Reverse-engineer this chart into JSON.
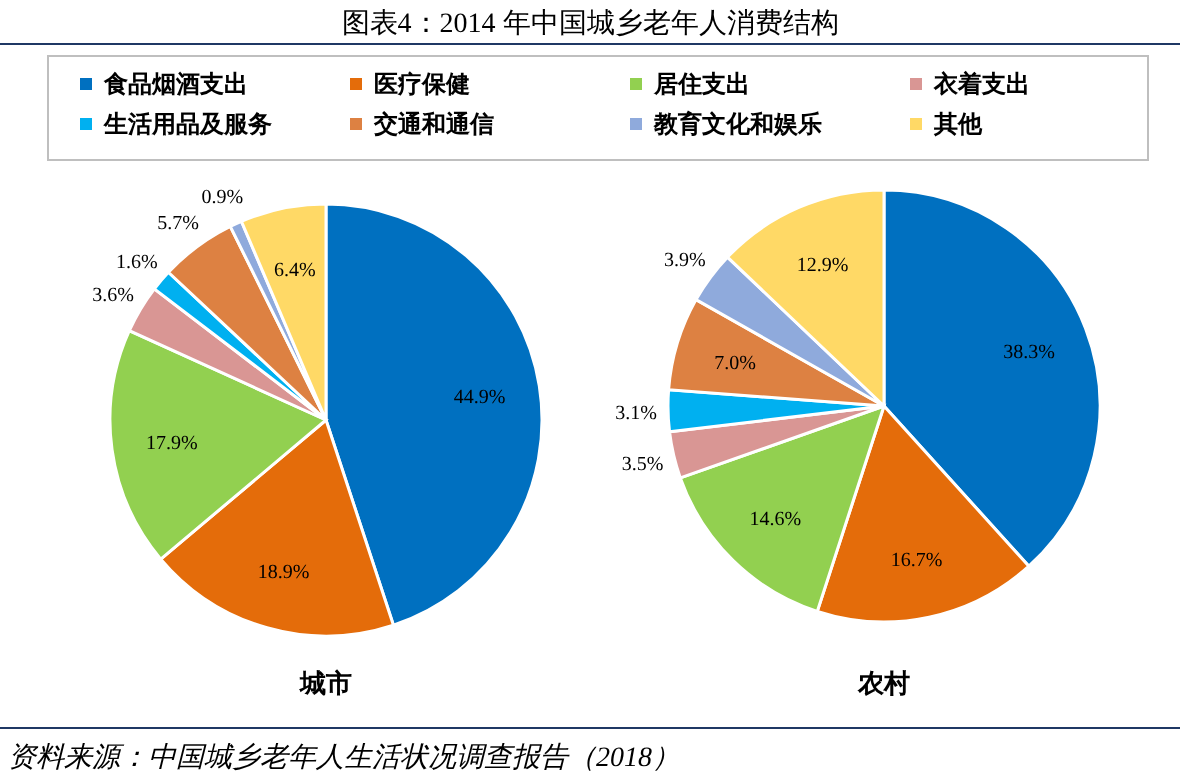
{
  "chart_data": [
    {
      "type": "pie",
      "title": "图表4：2014 年中国城乡老年人消费结构",
      "xlabel": "城市",
      "legend": "top",
      "categories": [
        "食品烟酒支出",
        "医疗保健",
        "居住支出",
        "衣着支出",
        "生活用品及服务",
        "交通和通信",
        "教育文化和娱乐",
        "其他"
      ],
      "values": [
        44.9,
        18.9,
        17.9,
        3.6,
        1.6,
        5.7,
        0.9,
        6.4
      ],
      "value_labels": [
        "44.9%",
        "18.9%",
        "17.9%",
        "3.6%",
        "1.6%",
        "5.7%",
        "0.9%",
        "6.4%"
      ],
      "colors": [
        "#0070c0",
        "#e46c0a",
        "#92d050",
        "#d99694",
        "#00b0f0",
        "#dd8142",
        "#8faadc",
        "#ffd966"
      ]
    },
    {
      "type": "pie",
      "xlabel": "农村",
      "categories": [
        null,
        null,
        null,
        null,
        null,
        null,
        null,
        null
      ],
      "values": [
        38.3,
        16.7,
        14.6,
        3.5,
        3.1,
        7.0,
        3.9,
        12.9
      ],
      "value_labels": [
        "38.3%",
        "16.7%",
        "14.6%",
        "3.5%",
        "3.1%",
        "7.0%",
        "3.9%",
        "12.9%"
      ],
      "colors": [
        "#0070c0",
        "#e46c0a",
        "#92d050",
        "#d99694",
        "#00b0f0",
        "#dd8142",
        "#8faadc",
        "#ffd966"
      ],
      "annotations": [
        "资料来源：中国城乡老年人生活状况调查报告（2018）"
      ]
    }
  ]
}
